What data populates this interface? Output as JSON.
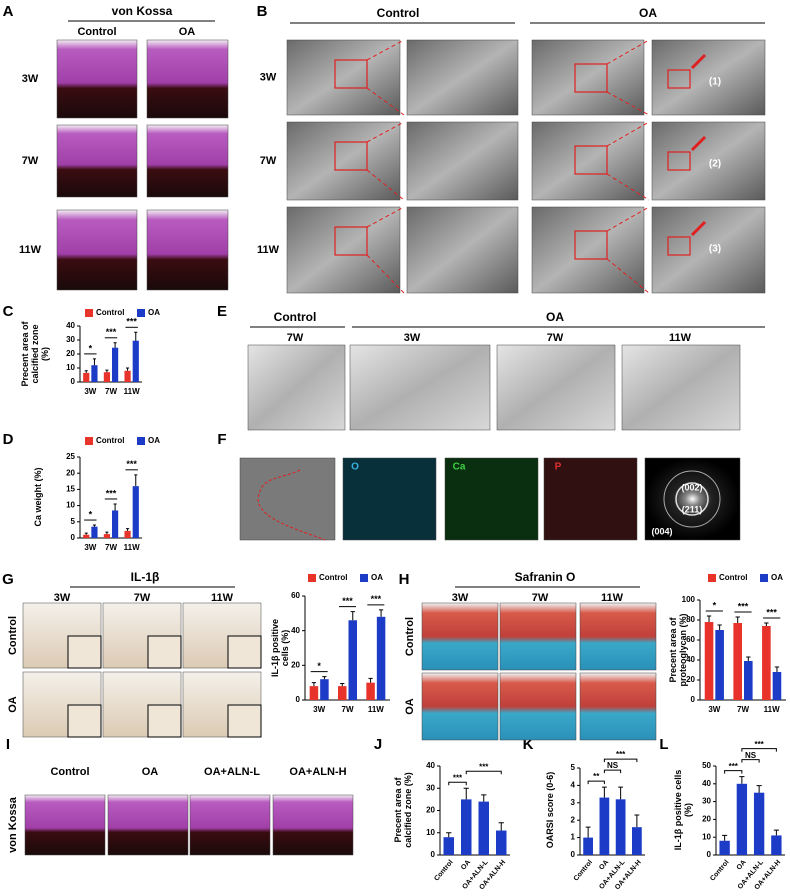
{
  "panel_letters": [
    "A",
    "B",
    "C",
    "D",
    "E",
    "F",
    "G",
    "H",
    "I",
    "J",
    "K",
    "L"
  ],
  "panel_a": {
    "title": "von Kossa",
    "columns": [
      "Control",
      "OA"
    ],
    "rows": [
      "3W",
      "7W",
      "11W"
    ]
  },
  "panel_b": {
    "columns": [
      "Control",
      "OA"
    ],
    "rows": [
      "3W",
      "7W",
      "11W"
    ],
    "callouts": [
      "(1)",
      "(2)",
      "(3)"
    ]
  },
  "panel_e": {
    "control": "Control",
    "control_time": "7W",
    "oa": "OA",
    "oa_times": [
      "3W",
      "7W",
      "11W"
    ]
  },
  "panel_f": {
    "elements": [
      "O",
      "Ca",
      "P"
    ],
    "diffraction": [
      "(002)",
      "(211)",
      "(004)"
    ]
  },
  "panel_g": {
    "title": "IL-1β",
    "columns": [
      "3W",
      "7W",
      "11W"
    ],
    "rows": [
      "Control",
      "OA"
    ]
  },
  "panel_h": {
    "title": "Safranin O",
    "columns": [
      "3W",
      "7W",
      "11W"
    ],
    "rows": [
      "Control",
      "OA"
    ]
  },
  "panel_i": {
    "columns": [
      "Control",
      "OA",
      "OA+ALN-L",
      "OA+ALN-H"
    ],
    "row": "von Kossa"
  },
  "chart_data": [
    {
      "type": "bar",
      "y_label": "Precent area of calcified zone (%)",
      "categories": [
        "3W",
        "7W",
        "11W"
      ],
      "series": [
        {
          "name": "Control",
          "color": "#e8332a",
          "values": [
            6.5,
            7,
            8
          ],
          "errors": [
            1.5,
            1.5,
            2
          ]
        },
        {
          "name": "OA",
          "color": "#1c3cc8",
          "values": [
            12,
            24.5,
            29.5
          ],
          "errors": [
            4.5,
            3.5,
            6
          ]
        }
      ],
      "ylim": [
        0,
        40
      ],
      "yticks": [
        0,
        10,
        20,
        30,
        40
      ],
      "annotations": [
        "*",
        "***",
        "***"
      ]
    },
    {
      "type": "bar",
      "y_label": "Ca weight (%)",
      "categories": [
        "3W",
        "7W",
        "11W"
      ],
      "series": [
        {
          "name": "Control",
          "color": "#e8332a",
          "values": [
            1,
            1.2,
            2.2
          ],
          "errors": [
            0.5,
            0.6,
            0.7
          ]
        },
        {
          "name": "OA",
          "color": "#1c3cc8",
          "values": [
            3.5,
            8.5,
            16
          ],
          "errors": [
            0.5,
            2,
            3.5
          ]
        }
      ],
      "ylim": [
        0,
        25
      ],
      "yticks": [
        0,
        5,
        10,
        15,
        20,
        25
      ],
      "annotations": [
        "*",
        "***",
        "***"
      ]
    },
    {
      "type": "bar",
      "y_label": "IL-1β positive cells (%)",
      "categories": [
        "3W",
        "7W",
        "11W"
      ],
      "series": [
        {
          "name": "Control",
          "color": "#e8332a",
          "values": [
            8,
            8,
            10
          ],
          "errors": [
            2,
            1.5,
            2.5
          ]
        },
        {
          "name": "OA",
          "color": "#1c3cc8",
          "values": [
            12,
            46,
            48
          ],
          "errors": [
            1.5,
            5,
            4
          ]
        }
      ],
      "ylim": [
        0,
        60
      ],
      "yticks": [
        0,
        20,
        40,
        60
      ],
      "annotations": [
        "*",
        "***",
        "***"
      ]
    },
    {
      "type": "bar",
      "y_label": "Precent area of proteoglycan (%)",
      "categories": [
        "3W",
        "7W",
        "11W"
      ],
      "series": [
        {
          "name": "Control",
          "color": "#e8332a",
          "values": [
            78,
            77,
            74
          ],
          "errors": [
            6,
            6,
            3
          ]
        },
        {
          "name": "OA",
          "color": "#1c3cc8",
          "values": [
            70,
            39,
            28
          ],
          "errors": [
            5,
            4,
            5
          ]
        }
      ],
      "ylim": [
        0,
        100
      ],
      "yticks": [
        0,
        20,
        40,
        60,
        80,
        100
      ],
      "annotations": [
        "*",
        "***",
        "***"
      ]
    },
    {
      "type": "bar",
      "y_label": "Precent area of calcified zone (%)",
      "categories": [
        "Control",
        "OA",
        "OA+ALN-L",
        "OA+ALN-H"
      ],
      "values": [
        8,
        25,
        24,
        11
      ],
      "errors": [
        2,
        5,
        3,
        3.5
      ],
      "color": "#1c3cc8",
      "ylim": [
        0,
        40
      ],
      "yticks": [
        0,
        10,
        20,
        30,
        40
      ],
      "annotations": [
        "***",
        "***"
      ]
    },
    {
      "type": "bar",
      "y_label": "OARSI score (0-6)",
      "categories": [
        "Control",
        "OA",
        "OA+ALN-L",
        "OA+ALN-H"
      ],
      "values": [
        1,
        3.3,
        3.2,
        1.6
      ],
      "errors": [
        0.6,
        0.6,
        0.7,
        0.7
      ],
      "color": "#1c3cc8",
      "ylim": [
        0,
        5
      ],
      "yticks": [
        0,
        1,
        2,
        3,
        4,
        5
      ],
      "annotations": [
        "**",
        "NS",
        "***"
      ]
    },
    {
      "type": "bar",
      "y_label": "IL-1β positive cells (%)",
      "categories": [
        "Control",
        "OA",
        "OA+ALN-L",
        "OA+ALN-H"
      ],
      "values": [
        8,
        40,
        35,
        11
      ],
      "errors": [
        3,
        4,
        4,
        3
      ],
      "color": "#1c3cc8",
      "ylim": [
        0,
        50
      ],
      "yticks": [
        0,
        10,
        20,
        30,
        40,
        50
      ],
      "annotations": [
        "***",
        "NS",
        "***"
      ]
    }
  ]
}
